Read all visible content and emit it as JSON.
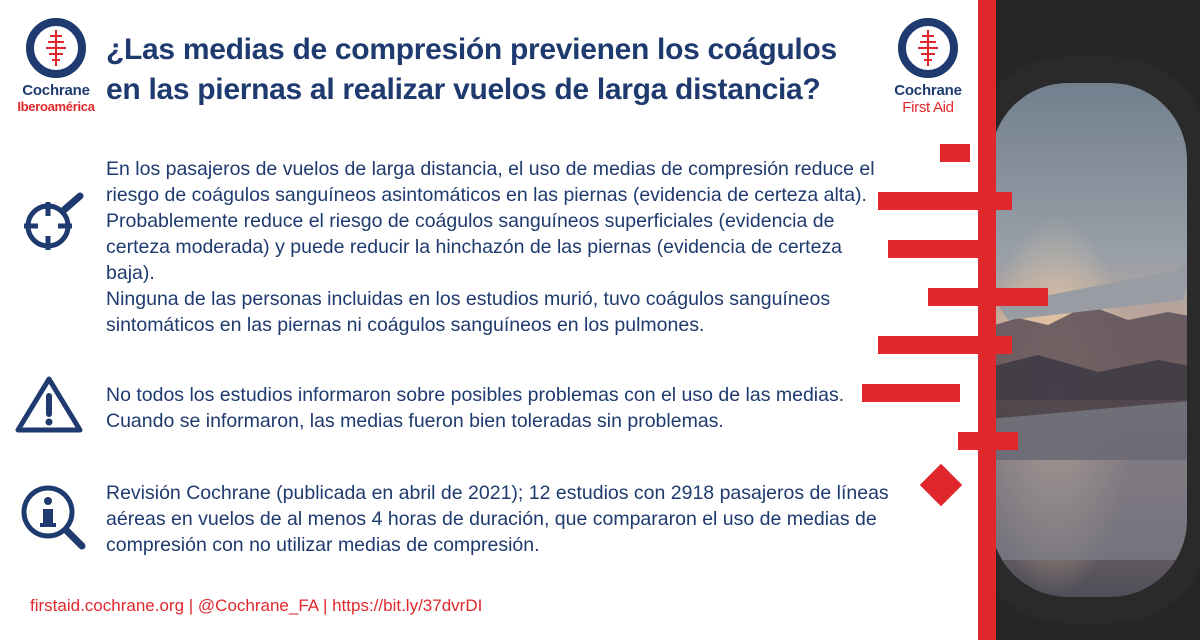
{
  "header": {
    "title": "¿Las medias de compresión previenen los coágulos en las piernas al realizar vuelos de larga distancia?"
  },
  "logos": {
    "left": {
      "name": "Cochrane",
      "sub": "Iberoamérica"
    },
    "right": {
      "name": "Cochrane",
      "sub": "First Aid"
    }
  },
  "sections": {
    "findings": {
      "icon": "target-magnifier-icon",
      "paragraph1": "En los pasajeros de vuelos de larga distancia, el uso de medias de compresión reduce el riesgo de coágulos sanguíneos asintomáticos en las piernas (evidencia de certeza alta). Probablemente reduce el riesgo de coágulos sanguíneos superficiales (evidencia de certeza moderada) y puede reducir la hinchazón de las piernas (evidencia de certeza baja).",
      "paragraph2": "Ninguna de las personas incluidas en los estudios murió, tuvo coágulos sanguíneos sintomáticos en las piernas ni coágulos sanguíneos en los pulmones."
    },
    "warning": {
      "icon": "warning-icon",
      "text": "No todos los estudios informaron sobre posibles problemas con el uso de las medias. Cuando se informaron, las medias fueron bien toleradas sin problemas."
    },
    "info": {
      "icon": "info-magnifier-icon",
      "text": "Revisión Cochrane (publicada en abril de 2021); 12 estudios con 2918 pasajeros de líneas aéreas en vuelos de al menos 4 horas de duración, que compararon el uso de medias de compresión con no utilizar medias de compresión."
    }
  },
  "footer": {
    "site": "firstaid.cochrane.org",
    "separator": "|",
    "handle": "@Cochrane_FA",
    "link": "https://bit.ly/37dvrDI"
  },
  "colors": {
    "navy": "#1e3a6e",
    "red": "#e0282c"
  }
}
